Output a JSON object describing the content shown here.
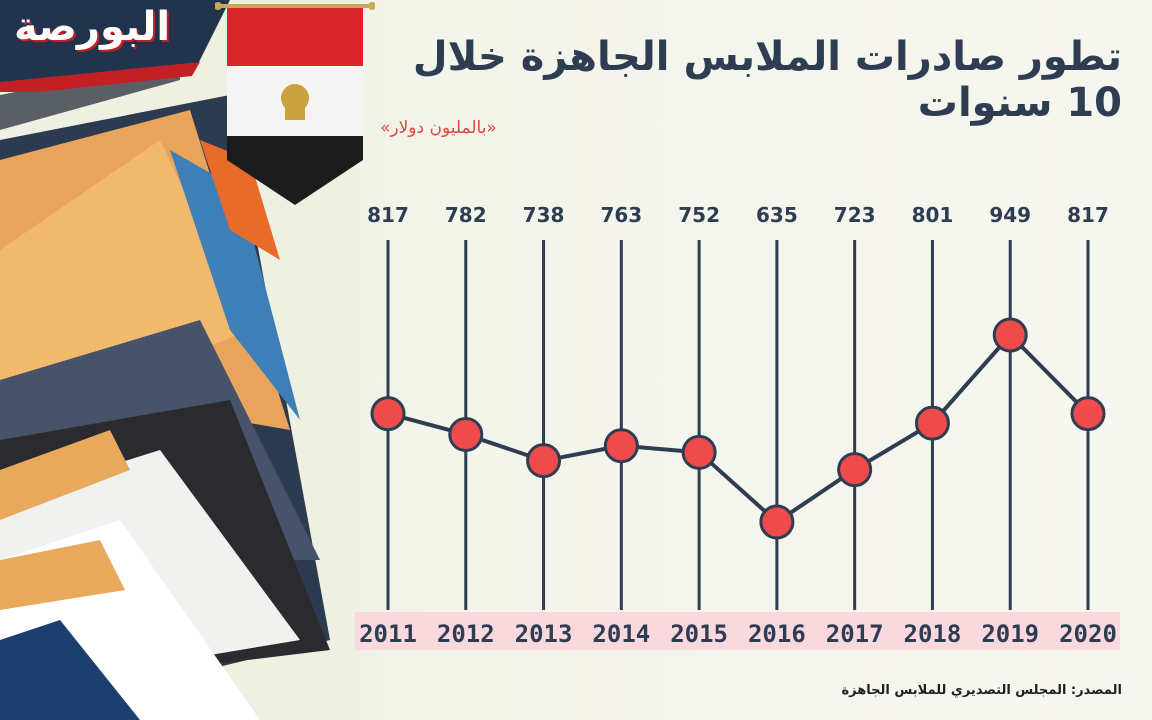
{
  "brand": {
    "logo_text": "البورصة"
  },
  "header": {
    "title": "تطور صادرات الملابس الجاهزة خلال 10 سنوات",
    "subtitle": "«بالمليون دولار»"
  },
  "footer": {
    "source": "المصدر: المجلس التصديري للملابس الجاهزة"
  },
  "colors": {
    "line": "#2e3d52",
    "marker": "#ef4b4b",
    "year_band": "#f9d9de",
    "title": "#2e3d52",
    "accent": "#e0473f"
  },
  "chart_data": {
    "type": "line",
    "categories": [
      "2011",
      "2012",
      "2013",
      "2014",
      "2015",
      "2016",
      "2017",
      "2018",
      "2019",
      "2020"
    ],
    "values": [
      817,
      782,
      738,
      763,
      752,
      635,
      723,
      801,
      949,
      817
    ],
    "title": "تطور صادرات الملابس الجاهزة خلال 10 سنوات",
    "subtitle": "«بالمليون دولار»",
    "grid": true,
    "ylim": [
      560,
      1000
    ]
  }
}
